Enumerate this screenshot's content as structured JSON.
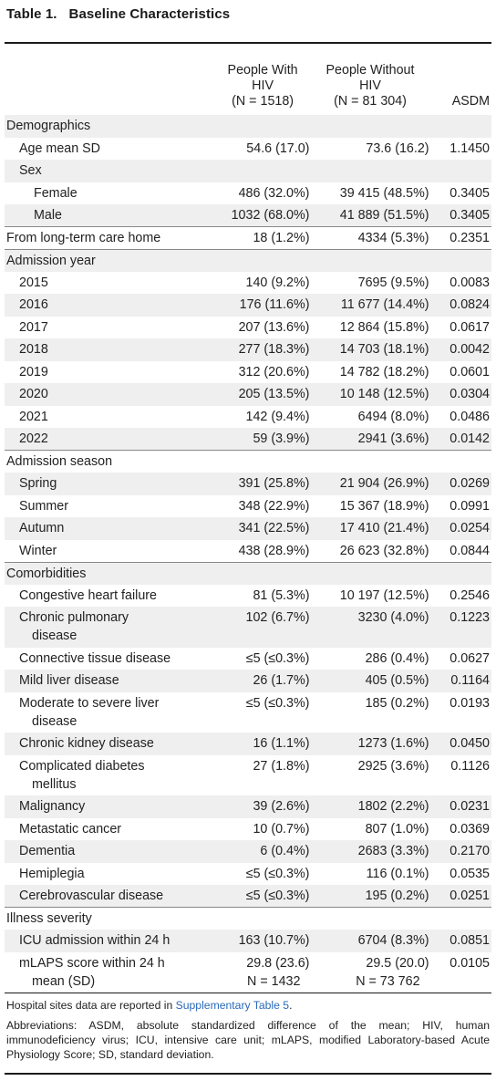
{
  "title": {
    "number": "Table 1.",
    "text": "Baseline Characteristics"
  },
  "columns": [
    {
      "line1": "",
      "line2": "",
      "line3": ""
    },
    {
      "line1": "People With",
      "line2": "HIV",
      "line3": "(N = 1518)"
    },
    {
      "line1": "People Without",
      "line2": "HIV",
      "line3": "(N = 81 304)"
    },
    {
      "line1": "",
      "line2": "",
      "line3": "ASDM"
    }
  ],
  "rows": [
    {
      "label": "Demographics",
      "level": 0,
      "shade": true,
      "v1": "",
      "v2": "",
      "v3": ""
    },
    {
      "label": "Age mean SD",
      "level": 1,
      "shade": false,
      "v1": "54.6 (17.0)",
      "v2": "73.6 (16.2)",
      "v3": "1.1450"
    },
    {
      "label": "Sex",
      "level": 1,
      "shade": true,
      "v1": "",
      "v2": "",
      "v3": ""
    },
    {
      "label": "Female",
      "level": 2,
      "shade": false,
      "v1": "486 (32.0%)",
      "v2": "39 415 (48.5%)",
      "v3": "0.3405"
    },
    {
      "label": "Male",
      "level": 2,
      "shade": true,
      "v1": "1032 (68.0%)",
      "v2": "41 889 (51.5%)",
      "v3": "0.3405"
    },
    {
      "label": "From long-term care home",
      "level": 0,
      "shade": false,
      "sep": true,
      "v1": "18 (1.2%)",
      "v2": "4334 (5.3%)",
      "v3": "0.2351"
    },
    {
      "label": "Admission year",
      "level": 0,
      "shade": true,
      "sep": true,
      "v1": "",
      "v2": "",
      "v3": ""
    },
    {
      "label": "2015",
      "level": 1,
      "shade": false,
      "v1": "140 (9.2%)",
      "v2": "7695 (9.5%)",
      "v3": "0.0083"
    },
    {
      "label": "2016",
      "level": 1,
      "shade": true,
      "v1": "176 (11.6%)",
      "v2": "11 677 (14.4%)",
      "v3": "0.0824"
    },
    {
      "label": "2017",
      "level": 1,
      "shade": false,
      "v1": "207 (13.6%)",
      "v2": "12 864 (15.8%)",
      "v3": "0.0617"
    },
    {
      "label": "2018",
      "level": 1,
      "shade": true,
      "v1": "277 (18.3%)",
      "v2": "14 703 (18.1%)",
      "v3": "0.0042"
    },
    {
      "label": "2019",
      "level": 1,
      "shade": false,
      "v1": "312 (20.6%)",
      "v2": "14 782 (18.2%)",
      "v3": "0.0601"
    },
    {
      "label": "2020",
      "level": 1,
      "shade": true,
      "v1": "205 (13.5%)",
      "v2": "10 148 (12.5%)",
      "v3": "0.0304"
    },
    {
      "label": "2021",
      "level": 1,
      "shade": false,
      "v1": "142 (9.4%)",
      "v2": "6494 (8.0%)",
      "v3": "0.0486"
    },
    {
      "label": "2022",
      "level": 1,
      "shade": true,
      "v1": "59 (3.9%)",
      "v2": "2941 (3.6%)",
      "v3": "0.0142"
    },
    {
      "label": "Admission season",
      "level": 0,
      "shade": false,
      "sep": true,
      "v1": "",
      "v2": "",
      "v3": ""
    },
    {
      "label": "Spring",
      "level": 1,
      "shade": true,
      "v1": "391 (25.8%)",
      "v2": "21 904 (26.9%)",
      "v3": "0.0269"
    },
    {
      "label": "Summer",
      "level": 1,
      "shade": false,
      "v1": "348 (22.9%)",
      "v2": "15 367 (18.9%)",
      "v3": "0.0991"
    },
    {
      "label": "Autumn",
      "level": 1,
      "shade": true,
      "v1": "341 (22.5%)",
      "v2": "17 410 (21.4%)",
      "v3": "0.0254"
    },
    {
      "label": "Winter",
      "level": 1,
      "shade": false,
      "v1": "438 (28.9%)",
      "v2": "26 623 (32.8%)",
      "v3": "0.0844"
    },
    {
      "label": "Comorbidities",
      "level": 0,
      "shade": true,
      "sep": true,
      "v1": "",
      "v2": "",
      "v3": ""
    },
    {
      "label": "Congestive heart failure",
      "level": 1,
      "shade": false,
      "v1": "81 (5.3%)",
      "v2": "10 197 (12.5%)",
      "v3": "0.2546"
    },
    {
      "label": "Chronic pulmonary",
      "label2": "disease",
      "level": 1,
      "shade": true,
      "v1": "102 (6.7%)",
      "v2": "3230 (4.0%)",
      "v3": "0.1223"
    },
    {
      "label": "Connective tissue disease",
      "level": 1,
      "shade": false,
      "v1": "≤5 (≤0.3%)",
      "v2": "286 (0.4%)",
      "v3": "0.0627"
    },
    {
      "label": "Mild liver disease",
      "level": 1,
      "shade": true,
      "v1": "26 (1.7%)",
      "v2": "405 (0.5%)",
      "v3": "0.1164"
    },
    {
      "label": "Moderate to severe liver",
      "label2": "disease",
      "level": 1,
      "shade": false,
      "v1": "≤5 (≤0.3%)",
      "v2": "185 (0.2%)",
      "v3": "0.0193"
    },
    {
      "label": "Chronic kidney disease",
      "level": 1,
      "shade": true,
      "v1": "16 (1.1%)",
      "v2": "1273 (1.6%)",
      "v3": "0.0450"
    },
    {
      "label": "Complicated diabetes",
      "label2": "mellitus",
      "level": 1,
      "shade": false,
      "v1": "27 (1.8%)",
      "v2": "2925 (3.6%)",
      "v3": "0.1126"
    },
    {
      "label": "Malignancy",
      "level": 1,
      "shade": true,
      "v1": "39 (2.6%)",
      "v2": "1802 (2.2%)",
      "v3": "0.0231"
    },
    {
      "label": "Metastatic cancer",
      "level": 1,
      "shade": false,
      "v1": "10 (0.7%)",
      "v2": "807 (1.0%)",
      "v3": "0.0369"
    },
    {
      "label": "Dementia",
      "level": 1,
      "shade": true,
      "v1": "6 (0.4%)",
      "v2": "2683 (3.3%)",
      "v3": "0.2170"
    },
    {
      "label": "Hemiplegia",
      "level": 1,
      "shade": false,
      "v1": "≤5 (≤0.3%)",
      "v2": "116 (0.1%)",
      "v3": "0.0535"
    },
    {
      "label": "Cerebrovascular disease",
      "level": 1,
      "shade": true,
      "v1": "≤5 (≤0.3%)",
      "v2": "195 (0.2%)",
      "v3": "0.0251"
    },
    {
      "label": "Illness severity",
      "level": 0,
      "shade": false,
      "sep": true,
      "v1": "",
      "v2": "",
      "v3": ""
    },
    {
      "label": "ICU admission within 24 h",
      "level": 1,
      "shade": true,
      "v1": "163 (10.7%)",
      "v2": "6704 (8.3%)",
      "v3": "0.0851"
    },
    {
      "label": "mLAPS score within 24 h",
      "label2": "mean (SD)",
      "level": 1,
      "shade": false,
      "v1": "29.8 (23.6)",
      "v1b": "N = 1432",
      "v2": "29.5 (20.0)",
      "v2b": "N = 73 762",
      "v3": "0.0105"
    }
  ],
  "footnote": {
    "hospital_prefix": "Hospital sites data are reported in ",
    "hospital_link": "Supplementary Table 5",
    "hospital_suffix": ".",
    "abbreviations": "Abbreviations: ASDM, absolute standardized difference of the mean; HIV, human immunodeficiency virus; ICU, intensive care unit; mLAPS, modified Laboratory-based Acute Physiology Score; SD, standard deviation."
  },
  "colors": {
    "shade": "#efefef",
    "link": "#2a6ab8",
    "rule": "#1a1a1a"
  }
}
